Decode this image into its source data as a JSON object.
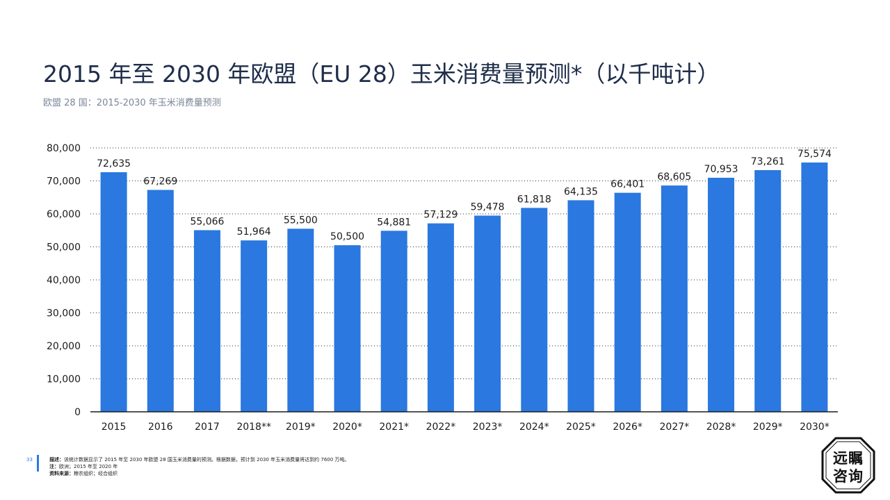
{
  "header": {
    "title": "2015 年至 2030 年欧盟（EU 28）玉米消费量预测*（以千吨计）",
    "subtitle": "欧盟 28 国：2015-2030 年玉米消费量预测"
  },
  "footer": {
    "page_number": "33",
    "description_label": "描述：",
    "description": "该统计数据显示了 2015 年至 2030 年欧盟 28 国玉米消费量的预测。根据数据，预计到 2030 年玉米消费量将达到约 7600 万吨。",
    "note_label": "注：",
    "note": "欧洲；2015 年至 2020 年",
    "source_label": "资料来源：",
    "source": "粮农组织；经合组织"
  },
  "logo": {
    "line1": "远瞩",
    "line2": "咨询"
  },
  "colors": {
    "bar": "#2a78e0",
    "title": "#1e2d4a",
    "accent": "#2a7ae2"
  },
  "chart_data": {
    "type": "bar",
    "categories": [
      "2015",
      "2016",
      "2017",
      "2018**",
      "2019*",
      "2020*",
      "2021*",
      "2022*",
      "2023*",
      "2024*",
      "2025*",
      "2026*",
      "2027*",
      "2028*",
      "2029*",
      "2030*"
    ],
    "values": [
      72635,
      67269,
      55066,
      51964,
      55500,
      50500,
      54881,
      57129,
      59478,
      61818,
      64135,
      66401,
      68605,
      70953,
      73261,
      75574
    ],
    "value_labels": [
      "72,635",
      "67,269",
      "55,066",
      "51,964",
      "55,500",
      "50,500",
      "54,881",
      "57,129",
      "59,478",
      "61,818",
      "64,135",
      "66,401",
      "68,605",
      "70,953",
      "73,261",
      "75,574"
    ],
    "y_ticks": [
      0,
      10000,
      20000,
      30000,
      40000,
      50000,
      60000,
      70000,
      80000
    ],
    "y_tick_labels": [
      "0",
      "10,000",
      "20,000",
      "30,000",
      "40,000",
      "50,000",
      "60,000",
      "70,000",
      "80,000"
    ],
    "ylim": [
      0,
      80000
    ],
    "grid": "horizontal-dotted",
    "legend": "none"
  }
}
